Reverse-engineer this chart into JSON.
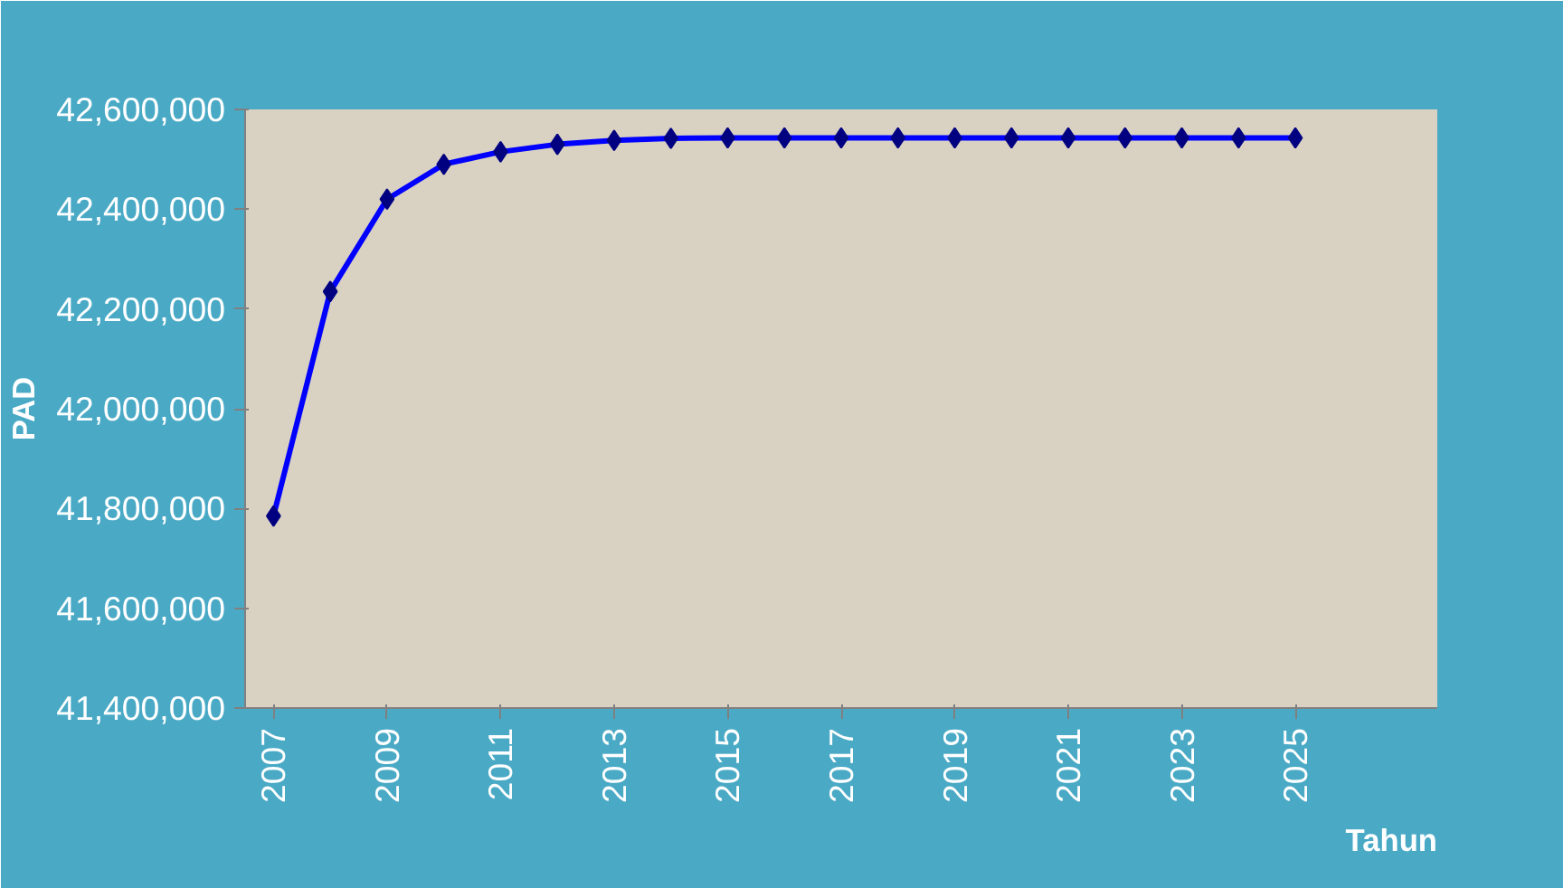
{
  "chart_data": {
    "type": "line",
    "ylabel": "PAD",
    "xlabel": "Tahun",
    "x": [
      2007,
      2008,
      2009,
      2010,
      2011,
      2012,
      2013,
      2014,
      2015,
      2016,
      2017,
      2018,
      2019,
      2020,
      2021,
      2022,
      2023,
      2024,
      2025
    ],
    "series": [
      {
        "color": "#0000ff",
        "values": [
          41785000,
          42235000,
          42420000,
          42490000,
          42515000,
          42530000,
          42538000,
          42542000,
          42543000,
          42543000,
          42543000,
          42543000,
          42543000,
          42543000,
          42543000,
          42543000,
          42543000,
          42543000,
          42543000
        ]
      }
    ],
    "xlim": [
      2006.5,
      2027.5
    ],
    "xticks": [
      2007,
      2009,
      2011,
      2013,
      2015,
      2017,
      2019,
      2021,
      2023,
      2025
    ],
    "ylim": [
      41400000,
      42600000
    ],
    "yticks": [
      {
        "value": 41400000,
        "label": "41,400,000"
      },
      {
        "value": 41600000,
        "label": "41,600,000"
      },
      {
        "value": 41800000,
        "label": "41,800,000"
      },
      {
        "value": 42000000,
        "label": "42,000,000"
      },
      {
        "value": 42200000,
        "label": "42,200,000"
      },
      {
        "value": 42400000,
        "label": "42,400,000"
      },
      {
        "value": 42600000,
        "label": "42,600,000"
      }
    ],
    "marker": "diamond",
    "line_style": "solid",
    "grid": false
  }
}
